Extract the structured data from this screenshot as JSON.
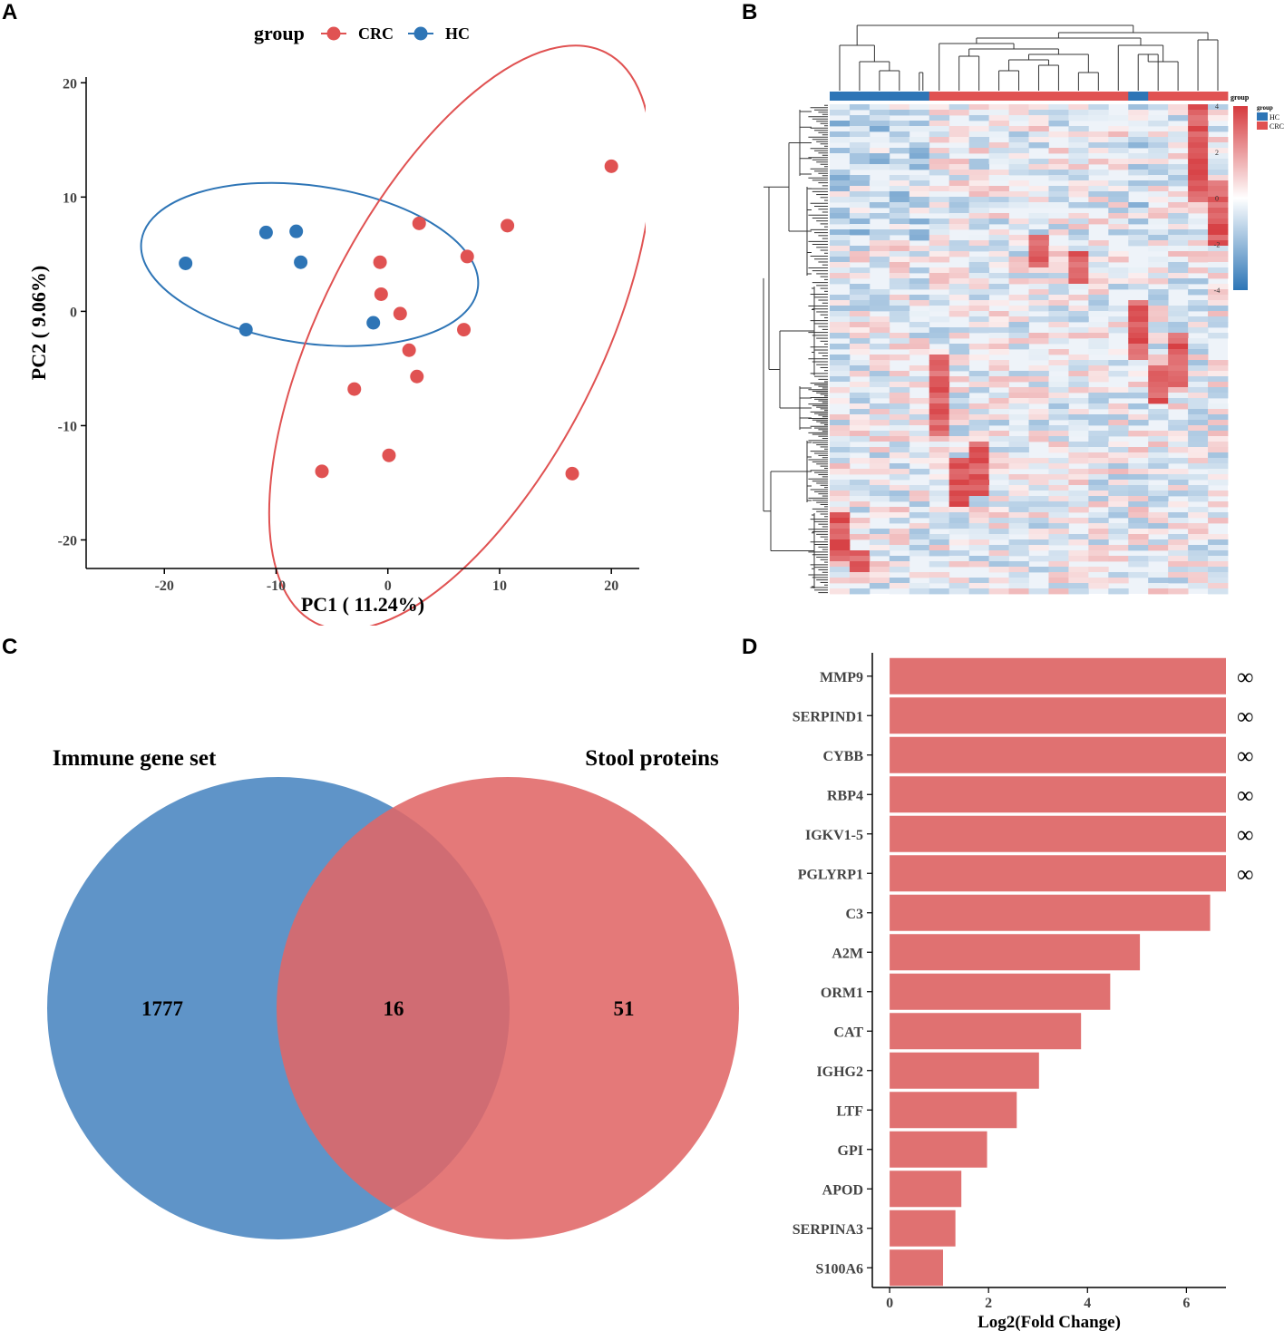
{
  "panels": {
    "a": "A",
    "b": "B",
    "c": "C",
    "d": "D"
  },
  "colors": {
    "crc": "#E05252",
    "hc": "#2E75B6",
    "venn_blue": "#3C7CBC",
    "venn_red": "#E06666",
    "bar": "#E07171"
  },
  "chart_data": [
    {
      "type": "scatter",
      "legend_title": "group",
      "legend": [
        "CRC",
        "HC"
      ],
      "xlabel": "PC1 ( 11.24%)",
      "ylabel": "PC2 ( 9.06%)",
      "xlim": [
        -27,
        22.5
      ],
      "ylim": [
        -22.5,
        20.5
      ],
      "xticks": [
        -20,
        -10,
        0,
        10,
        20
      ],
      "yticks": [
        -20,
        -10,
        0,
        10,
        20
      ],
      "xtick_labels": [
        "-20",
        "-10",
        "0",
        "10",
        "20"
      ],
      "ytick_labels": [
        "-20",
        "-10",
        "0",
        "10",
        "20"
      ],
      "series": [
        {
          "name": "HC",
          "points": [
            [
              -18.1,
              4.2
            ],
            [
              -10.9,
              6.9
            ],
            [
              -8.2,
              7.0
            ],
            [
              -7.8,
              4.3
            ],
            [
              -12.7,
              -1.6
            ],
            [
              -1.3,
              -1.0
            ]
          ],
          "ellipse": {
            "cx": -7.0,
            "cy": 4.1,
            "rx": 15.2,
            "ry": 6.9,
            "angle_deg": -8
          }
        },
        {
          "name": "CRC",
          "points": [
            [
              20.0,
              12.7
            ],
            [
              10.7,
              7.5
            ],
            [
              2.8,
              7.7
            ],
            [
              7.1,
              4.8
            ],
            [
              -0.7,
              4.3
            ],
            [
              -0.6,
              1.5
            ],
            [
              1.1,
              -0.2
            ],
            [
              6.8,
              -1.6
            ],
            [
              1.9,
              -3.4
            ],
            [
              2.6,
              -5.7
            ],
            [
              -3.0,
              -6.8
            ],
            [
              0.1,
              -12.6
            ],
            [
              -5.9,
              -14.0
            ],
            [
              16.5,
              -14.2
            ]
          ]
        }
      ],
      "crc_ellipse": {
        "cx": 6.5,
        "cy": -2.3,
        "rx": 28.0,
        "ry": 12.5,
        "angle_deg": 63
      }
    },
    {
      "type": "heatmap",
      "legend_group_title": "group",
      "legend_group_entries": [
        "HC",
        "CRC"
      ],
      "colorbar_ticks": [
        4,
        2,
        0,
        -2,
        -4
      ],
      "colorbar_labels": [
        "4",
        "2",
        "0",
        "-2",
        "-4"
      ],
      "column_groups": [
        "HC",
        "HC",
        "HC",
        "HC",
        "HC",
        "CRC",
        "CRC",
        "CRC",
        "CRC",
        "CRC",
        "CRC",
        "CRC",
        "CRC",
        "CRC",
        "CRC",
        "HC",
        "CRC",
        "CRC",
        "CRC",
        "CRC"
      ],
      "n_rows": 400
    },
    {
      "type": "venn",
      "sets": [
        {
          "name": "Immune gene set",
          "only": "1777"
        },
        {
          "name": "Stool proteins",
          "only": "51"
        }
      ],
      "intersection": "16"
    },
    {
      "type": "bar",
      "orientation": "horizontal",
      "xlabel": "Log2(Fold Change)",
      "xlim": [
        -0.35,
        6.8
      ],
      "xticks": [
        0,
        2,
        4,
        6
      ],
      "xtick_labels": [
        "0",
        "2",
        "4",
        "6"
      ],
      "categories": [
        "MMP9",
        "SERPIND1",
        "CYBB",
        "RBP4",
        "IGKV1-5",
        "PGLYRP1",
        "C3",
        "A2M",
        "ORM1",
        "CAT",
        "IGHG2",
        "LTF",
        "GPI",
        "APOD",
        "SERPINA3",
        "S100A6"
      ],
      "values": [
        6.8,
        6.8,
        6.8,
        6.8,
        6.8,
        6.8,
        6.48,
        5.06,
        4.46,
        3.87,
        3.02,
        2.57,
        1.97,
        1.45,
        1.33,
        1.08
      ],
      "annotations": [
        "∞",
        "∞",
        "∞",
        "∞",
        "∞",
        "∞",
        "",
        "",
        "",
        "",
        "",
        "",
        "",
        "",
        "",
        ""
      ]
    }
  ]
}
